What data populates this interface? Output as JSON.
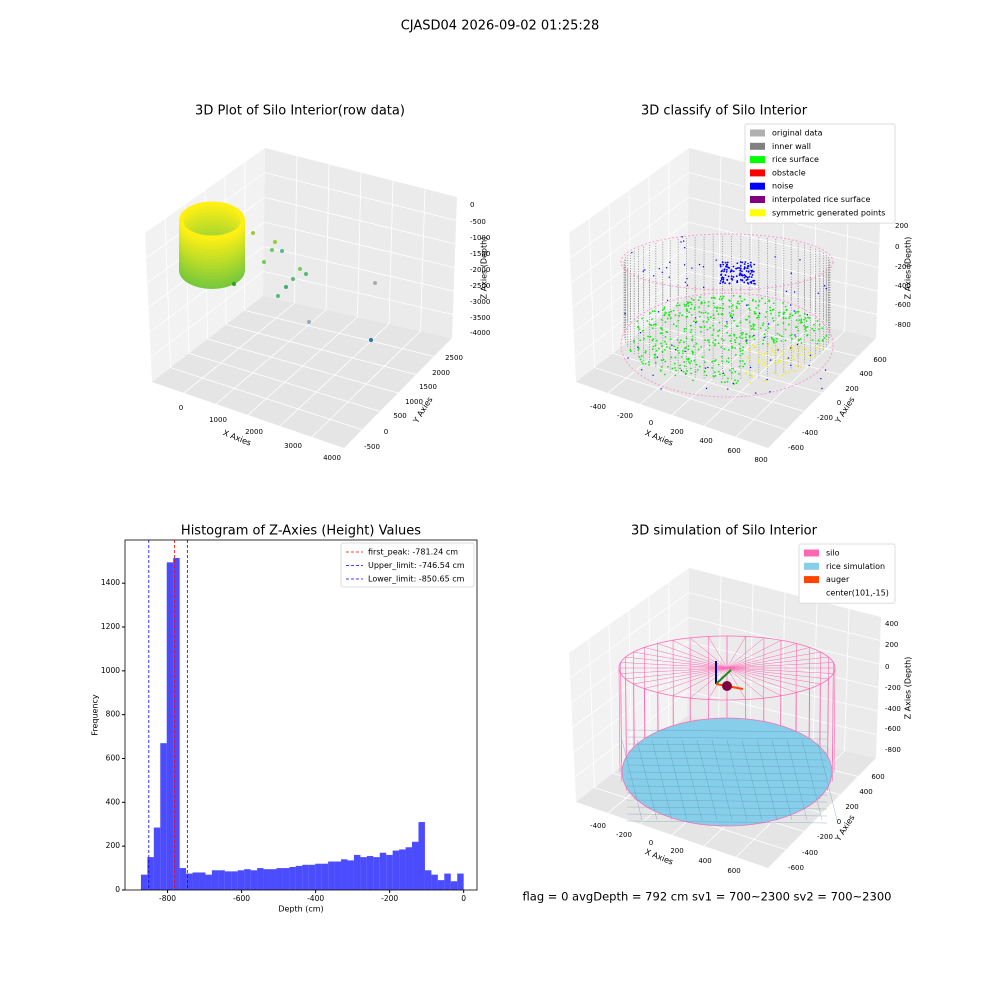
{
  "title": "CJASD04 2026-09-02 01:25:28",
  "footer": "flag = 0     avgDepth = 792 cm  sv1 = 700~2300  sv2 = 700~2300",
  "chart_data": [
    {
      "type": "scatter3d",
      "title": "3D Plot of Silo Interior(row data)",
      "xlabel": "X Axies",
      "ylabel": "Y Axies",
      "zlabel": "Z Axies (Depth)",
      "xticks": [
        0,
        1000,
        2000,
        3000,
        4000
      ],
      "yticks": [
        -500,
        0,
        500,
        1000,
        1500,
        2000,
        2500
      ],
      "zticks": [
        0,
        -500,
        -1000,
        -1500,
        -2000,
        -2500,
        -3000,
        -3500,
        -4000
      ]
    },
    {
      "type": "scatter3d",
      "title": "3D classify of Silo Interior",
      "xlabel": "X Axies",
      "ylabel": "Y Axies",
      "zlabel": "Z Axies (Depth)",
      "xticks": [
        -400,
        -200,
        0,
        200,
        400,
        600,
        800
      ],
      "yticks": [
        600,
        400,
        200,
        0,
        -200,
        -400,
        -600
      ],
      "zticks": [
        200,
        0,
        -200,
        -400,
        -600,
        -800
      ],
      "legend": [
        {
          "name": "original data",
          "color": "#b0b0b0"
        },
        {
          "name": "inner wall",
          "color": "#808080"
        },
        {
          "name": "rice surface",
          "color": "#00ff00"
        },
        {
          "name": "obstacle",
          "color": "#ff0000"
        },
        {
          "name": "noise",
          "color": "#0000ff"
        },
        {
          "name": "interpolated rice surface",
          "color": "#800080"
        },
        {
          "name": "symmetric generated points",
          "color": "#ffff00"
        }
      ]
    },
    {
      "type": "histogram",
      "title": "Histogram of Z-Axies (Height) Values",
      "xlabel": "Depth (cm)",
      "ylabel": "Frequency",
      "color": "#0000ff",
      "bins": [
        -872,
        -854.56,
        -837.12,
        -819.68,
        -802.24,
        -784.8,
        -767.36,
        -749.92,
        -732.48,
        -715.04,
        -697.6,
        -680.16,
        -662.72,
        -645.28,
        -627.84,
        -610.4,
        -592.96,
        -575.52,
        -558.08,
        -540.64,
        -523.2,
        -505.76,
        -488.32,
        -470.88,
        -453.44,
        -436,
        -418.56,
        -401.12,
        -383.68,
        -366.24,
        -348.8,
        -331.36,
        -313.92,
        -296.48,
        -279.04,
        -261.6,
        -244.16,
        -226.72,
        -209.28,
        -191.84,
        -174.4,
        -156.96,
        -139.52,
        -122.08,
        -104.64,
        -87.2,
        -69.76,
        -52.32,
        -34.88,
        -17.44,
        0
      ],
      "values": [
        70,
        150,
        285,
        670,
        1495,
        1515,
        100,
        75,
        80,
        80,
        70,
        90,
        90,
        85,
        85,
        90,
        95,
        90,
        100,
        95,
        95,
        100,
        100,
        105,
        110,
        115,
        115,
        120,
        120,
        130,
        130,
        140,
        135,
        160,
        150,
        155,
        150,
        170,
        160,
        180,
        185,
        195,
        220,
        310,
        90,
        70,
        45,
        75,
        40,
        75
      ],
      "xlim": [
        -915,
        36
      ],
      "ylim": [
        0,
        1597
      ],
      "xticks": [
        -800,
        -600,
        -400,
        -200,
        0
      ],
      "yticks": [
        0,
        200,
        400,
        600,
        800,
        1000,
        1200,
        1400
      ],
      "vlines": [
        {
          "name": "first_peak: -781.24 cm",
          "value": -781.24,
          "color": "#ff0000"
        },
        {
          "name": "Upper_limit: -746.54 cm",
          "value": -746.54,
          "color": "#0000ff"
        },
        {
          "name": "Lower_limit: -850.65 cm",
          "value": -850.65,
          "color": "#0000ff"
        }
      ],
      "legend_position": "upper right"
    },
    {
      "type": "scatter3d",
      "title": "3D simulation of Silo Interior",
      "xlabel": "X Axies",
      "ylabel": "Y Axies",
      "zlabel": "Z Axies (Depth)",
      "xticks": [
        -400,
        -200,
        0,
        200,
        400,
        600
      ],
      "yticks": [
        600,
        400,
        200,
        0,
        -200,
        -400,
        -600
      ],
      "zticks": [
        400,
        200,
        0,
        -200,
        -400,
        -600,
        -800
      ],
      "legend": [
        {
          "name": "silo",
          "color": "#ff69b4"
        },
        {
          "name": "rice simulation",
          "color": "#87ceeb"
        },
        {
          "name": "auger",
          "color": "#ff4500"
        },
        {
          "name": "center(101,-15)",
          "color": null
        }
      ]
    }
  ]
}
